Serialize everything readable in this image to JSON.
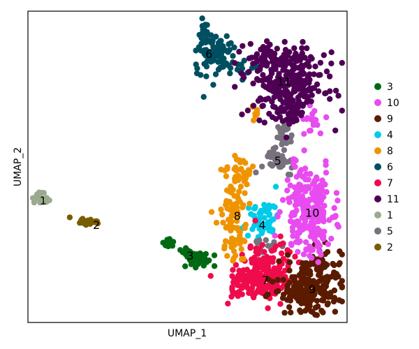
{
  "chart_data": {
    "type": "scatter",
    "title": "",
    "xlabel": "UMAP_1",
    "ylabel": "UMAP_2",
    "xlim": [
      0,
      100
    ],
    "ylim": [
      0,
      100
    ],
    "grid": false,
    "ticks": false,
    "legend_placement": "right",
    "legend": [
      {
        "name": "3",
        "color": "#006a13"
      },
      {
        "name": "10",
        "color": "#e84cf0"
      },
      {
        "name": "9",
        "color": "#5b1b00"
      },
      {
        "name": "4",
        "color": "#00cbe8"
      },
      {
        "name": "8",
        "color": "#ef9400"
      },
      {
        "name": "6",
        "color": "#004f61"
      },
      {
        "name": "7",
        "color": "#ef0b4c"
      },
      {
        "name": "11",
        "color": "#4f0055"
      },
      {
        "name": "1",
        "color": "#9aaa8e"
      },
      {
        "name": "5",
        "color": "#77707d"
      },
      {
        "name": "2",
        "color": "#7a5d00"
      }
    ],
    "clusters": [
      {
        "name": "1",
        "color": "#9aaa8e",
        "label_at": [
          4,
          39
        ],
        "blobs": [
          {
            "cx": 3,
            "cy": 40,
            "sx": 1.3,
            "sy": 1.4,
            "n": 14,
            "tilt": -0.6
          }
        ]
      },
      {
        "name": "2",
        "color": "#7a5d00",
        "label_at": [
          21,
          31
        ],
        "blobs": [
          {
            "cx": 19,
            "cy": 32,
            "sx": 2.0,
            "sy": 0.7,
            "n": 18
          }
        ]
      },
      {
        "name": "3",
        "color": "#006a13",
        "label_at": [
          51,
          21
        ],
        "blobs": [
          {
            "cx": 54,
            "cy": 20,
            "sx": 2.0,
            "sy": 1.2,
            "n": 45
          },
          {
            "cx": 44,
            "cy": 25,
            "sx": 1.0,
            "sy": 1.0,
            "n": 12
          },
          {
            "cx": 49,
            "cy": 22,
            "sx": 1.2,
            "sy": 0.8,
            "n": 8
          }
        ]
      },
      {
        "name": "4",
        "color": "#00cbe8",
        "label_at": [
          74,
          31
        ],
        "blobs": [
          {
            "cx": 74,
            "cy": 32,
            "sx": 2.6,
            "sy": 3.5,
            "n": 55
          }
        ]
      },
      {
        "name": "5",
        "color": "#77707d",
        "label_at": [
          79,
          52
        ],
        "blobs": [
          {
            "cx": 79,
            "cy": 52,
            "sx": 2.4,
            "sy": 2.2,
            "n": 40
          },
          {
            "cx": 81,
            "cy": 61,
            "sx": 1.5,
            "sy": 2.5,
            "n": 26
          },
          {
            "cx": 76,
            "cy": 25,
            "sx": 2.0,
            "sy": 1.0,
            "n": 14
          }
        ]
      },
      {
        "name": "6",
        "color": "#004f61",
        "label_at": [
          57,
          87
        ],
        "blobs": [
          {
            "cx": 59,
            "cy": 87,
            "sx": 3.0,
            "sy": 3.0,
            "n": 85
          },
          {
            "cx": 55,
            "cy": 94,
            "sx": 1.2,
            "sy": 2.5,
            "n": 20
          },
          {
            "cx": 67,
            "cy": 82,
            "sx": 3.0,
            "sy": 1.5,
            "n": 18
          }
        ]
      },
      {
        "name": "7",
        "color": "#ef0b4c",
        "label_at": [
          75,
          13
        ],
        "blobs": [
          {
            "cx": 76,
            "cy": 15,
            "sx": 5.0,
            "sy": 5.0,
            "n": 170
          },
          {
            "cx": 68,
            "cy": 12,
            "sx": 3.0,
            "sy": 2.2,
            "n": 40
          }
        ]
      },
      {
        "name": "8",
        "color": "#ef9400",
        "label_at": [
          66,
          34
        ],
        "blobs": [
          {
            "cx": 65,
            "cy": 35,
            "sx": 2.2,
            "sy": 8.0,
            "n": 100
          },
          {
            "cx": 68,
            "cy": 48,
            "sx": 1.3,
            "sy": 3.0,
            "n": 24
          },
          {
            "cx": 72,
            "cy": 68,
            "sx": 0.8,
            "sy": 1.2,
            "n": 8
          }
        ]
      },
      {
        "name": "9",
        "color": "#5b1b00",
        "label_at": [
          90,
          10
        ],
        "blobs": [
          {
            "cx": 89,
            "cy": 10,
            "sx": 5.0,
            "sy": 4.2,
            "n": 190
          },
          {
            "cx": 92,
            "cy": 18,
            "sx": 3.5,
            "sy": 3.0,
            "n": 40
          }
        ]
      },
      {
        "name": "10",
        "color": "#e84cf0",
        "label_at": [
          90,
          35
        ],
        "blobs": [
          {
            "cx": 89,
            "cy": 36,
            "sx": 4.0,
            "sy": 7.5,
            "n": 230
          },
          {
            "cx": 90,
            "cy": 65,
            "sx": 1.5,
            "sy": 2.0,
            "n": 16
          }
        ]
      },
      {
        "name": "11",
        "color": "#4f0055",
        "label_at": [
          81,
          78
        ],
        "blobs": [
          {
            "cx": 82,
            "cy": 77,
            "sx": 6.0,
            "sy": 5.0,
            "n": 250
          },
          {
            "cx": 79,
            "cy": 86,
            "sx": 5.0,
            "sy": 2.2,
            "n": 60
          },
          {
            "cx": 83,
            "cy": 68,
            "sx": 3.0,
            "sy": 3.0,
            "n": 40
          }
        ]
      }
    ]
  }
}
